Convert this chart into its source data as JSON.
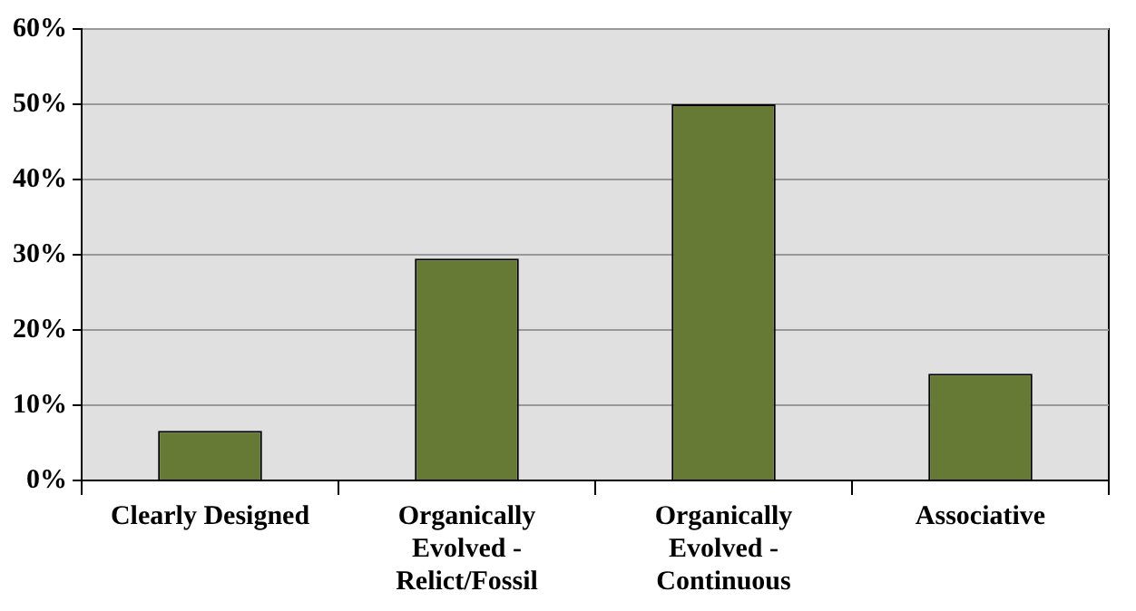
{
  "chart_data": {
    "type": "bar",
    "categories": [
      "Clearly Designed",
      "Organically Evolved - Relict/Fossil",
      "Organically Evolved - Continuous",
      "Associative"
    ],
    "values": [
      6.6,
      29.5,
      50,
      14.2
    ],
    "color": "#667a35",
    "ylim": [
      0,
      60
    ],
    "yticks": [
      {
        "value": 0,
        "label": "0%"
      },
      {
        "value": 10,
        "label": "10%"
      },
      {
        "value": 20,
        "label": "20%"
      },
      {
        "value": 30,
        "label": "30%"
      },
      {
        "value": 40,
        "label": "40%"
      },
      {
        "value": 50,
        "label": "50%"
      },
      {
        "value": 60,
        "label": "60%"
      }
    ],
    "grid": "y",
    "legend": false
  }
}
